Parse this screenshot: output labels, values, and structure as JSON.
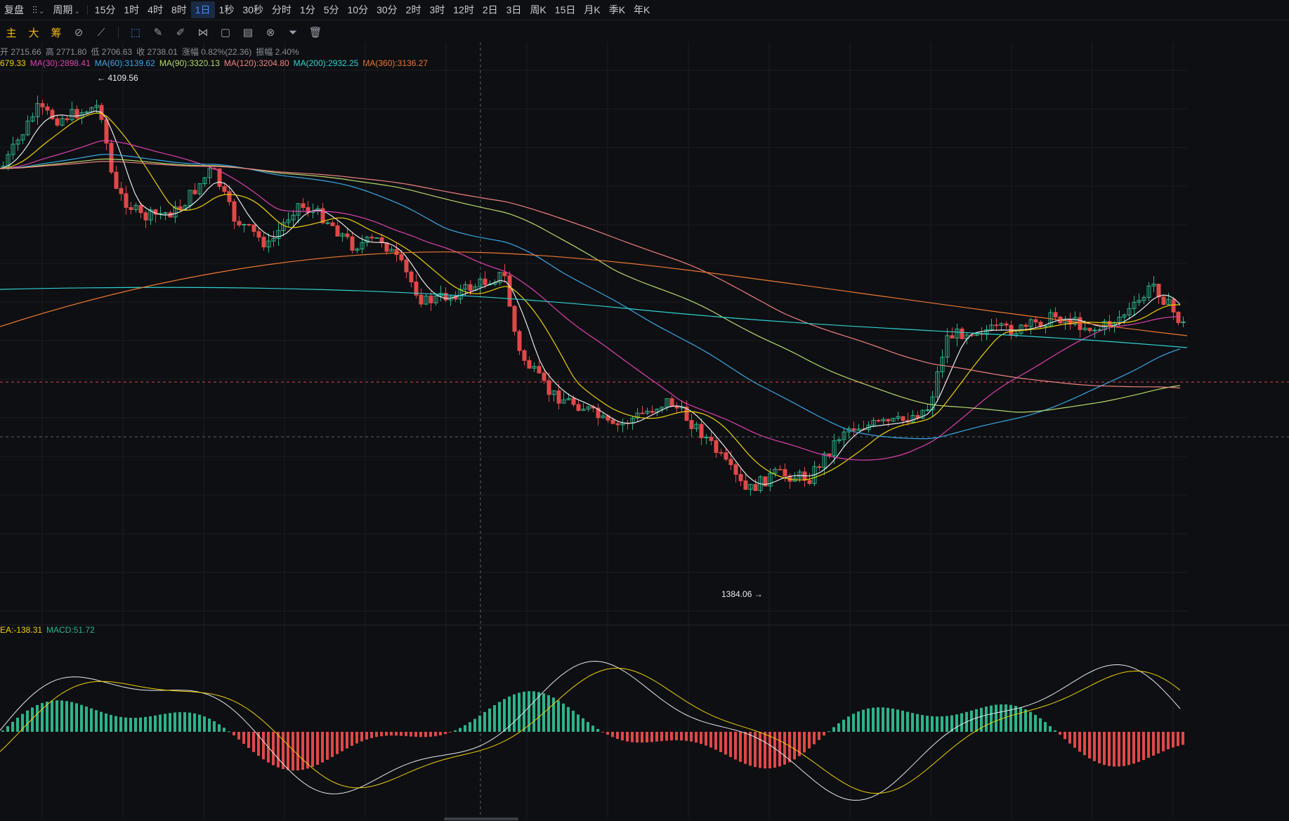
{
  "topbar": {
    "replay": "复盘",
    "chart_type_icon": "candlestick-icon",
    "period": "周期",
    "intervals": [
      {
        "label": "15分",
        "active": false
      },
      {
        "label": "1时",
        "active": false
      },
      {
        "label": "4时",
        "active": false
      },
      {
        "label": "8时",
        "active": false
      },
      {
        "label": "1日",
        "active": true
      },
      {
        "label": "1秒",
        "active": false
      },
      {
        "label": "30秒",
        "active": false
      },
      {
        "label": "分时",
        "active": false
      },
      {
        "label": "1分",
        "active": false
      },
      {
        "label": "5分",
        "active": false
      },
      {
        "label": "10分",
        "active": false
      },
      {
        "label": "30分",
        "active": false
      },
      {
        "label": "2时",
        "active": false
      },
      {
        "label": "3时",
        "active": false
      },
      {
        "label": "12时",
        "active": false
      },
      {
        "label": "2日",
        "active": false
      },
      {
        "label": "3日",
        "active": false
      },
      {
        "label": "周K",
        "active": false
      },
      {
        "label": "15日",
        "active": false
      },
      {
        "label": "月K",
        "active": false
      },
      {
        "label": "季K",
        "active": false
      },
      {
        "label": "年K",
        "active": false
      }
    ]
  },
  "toolbar": {
    "main": "主",
    "big": "大",
    "chips": "筹",
    "icons": [
      "indicator-icon",
      "draw-tool-icon",
      "cursor-icon",
      "ruler-icon",
      "brush-icon",
      "pattern-icon",
      "box-icon",
      "note-icon",
      "magnet-icon",
      "filter-icon",
      "trash-icon"
    ]
  },
  "ohlc": {
    "open": "开 2715.66",
    "high": "高 2771.80",
    "low": "低 2706.63",
    "close": "收 2738.01",
    "change": "涨幅 0.82%(22.36)",
    "amplitude": "振幅 2.40%"
  },
  "ma_legend": [
    {
      "text": "679.33",
      "color": "#f0d000"
    },
    {
      "text": "MA(30):2898.41",
      "color": "#e040b0"
    },
    {
      "text": "MA(60):3139.62",
      "color": "#3aa8e8"
    },
    {
      "text": "MA(90):3320.13",
      "color": "#b8d86a"
    },
    {
      "text": "MA(120):3204.80",
      "color": "#f08080"
    },
    {
      "text": "MA(200):2932.25",
      "color": "#30d0d0"
    },
    {
      "text": "MA(360):3136.27",
      "color": "#f07830"
    }
  ],
  "annotations": {
    "high": "← 4109.56",
    "low": "1384.06 →"
  },
  "macd_legend": [
    {
      "text": "EA:-138.31",
      "color": "#f0d000"
    },
    {
      "text": "MACD:51.72",
      "color": "#2db38a"
    }
  ],
  "colors": {
    "up": "#2db38a",
    "down": "#e04848",
    "bg": "#0d0f12",
    "grid": "#1a1d22"
  }
}
